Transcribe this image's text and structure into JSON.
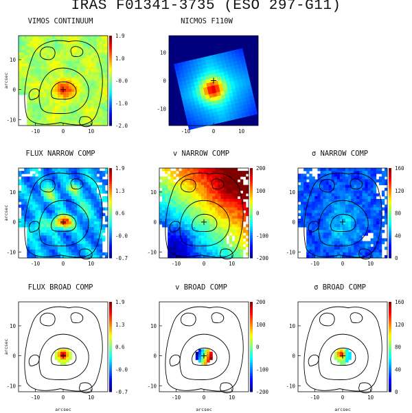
{
  "title": "IRAS F01341-3735 (ESO 297-G11)",
  "colors": {
    "jet": [
      "#00007f",
      "#0000ff",
      "#007fff",
      "#00ffff",
      "#7fff7f",
      "#ffff00",
      "#ff7f00",
      "#ff0000",
      "#7f0000"
    ],
    "outside": "#00007f"
  },
  "chart_data": [
    {
      "id": "vimos_cont",
      "type": "heatmap",
      "title": "VIMOS CONTINUUM",
      "xlabel": "",
      "ylabel": "arcsec",
      "xticks": [
        "-10",
        "0",
        "10"
      ],
      "yticks": [
        "10",
        "0",
        "-10"
      ],
      "colorbar": [
        "1.9",
        "1.0",
        "-0.0",
        "-1.0",
        "-2.0"
      ],
      "xlim": [
        -16,
        16
      ],
      "ylim": [
        -12,
        18
      ]
    },
    {
      "id": "nicmos",
      "type": "heatmap",
      "title": "NICMOS F110W",
      "xlabel": "",
      "ylabel": "",
      "xticks": [
        "-10",
        "0",
        "10"
      ],
      "yticks": [
        "10",
        "0",
        "-10"
      ],
      "xlim": [
        -16,
        16
      ],
      "ylim": [
        -16,
        16
      ]
    },
    {
      "id": "flux_narrow",
      "type": "heatmap",
      "title": "FLUX NARROW COMP",
      "xlabel": "",
      "ylabel": "arcsec",
      "xticks": [
        "-10",
        "0",
        "10"
      ],
      "yticks": [
        "10",
        "0",
        "-10"
      ],
      "colorbar": [
        "1.9",
        "1.3",
        "0.6",
        "-0.0",
        "-0.7"
      ],
      "xlim": [
        -16,
        16
      ],
      "ylim": [
        -12,
        18
      ]
    },
    {
      "id": "v_narrow",
      "type": "heatmap",
      "title": "v NARROW COMP",
      "xlabel": "",
      "ylabel": "",
      "xticks": [
        "-10",
        "0",
        "10"
      ],
      "yticks": [
        "10",
        "0",
        "-10"
      ],
      "colorbar": [
        "200",
        "100",
        "0",
        "-100",
        "-200"
      ],
      "xlim": [
        -16,
        16
      ],
      "ylim": [
        -12,
        18
      ]
    },
    {
      "id": "sigma_narrow",
      "type": "heatmap",
      "title": "σ NARROW COMP",
      "xlabel": "",
      "ylabel": "",
      "xticks": [
        "-10",
        "0",
        "10"
      ],
      "yticks": [
        "10",
        "0",
        "-10"
      ],
      "colorbar": [
        "160",
        "120",
        "80",
        "40",
        "0"
      ],
      "xlim": [
        -16,
        16
      ],
      "ylim": [
        -12,
        18
      ]
    },
    {
      "id": "flux_broad",
      "type": "heatmap",
      "title": "FLUX BROAD COMP",
      "xlabel": "arcsec",
      "ylabel": "arcsec",
      "xticks": [
        "-10",
        "0",
        "10"
      ],
      "yticks": [
        "10",
        "0",
        "-10"
      ],
      "colorbar": [
        "1.9",
        "1.3",
        "0.6",
        "-0.0",
        "-0.7"
      ],
      "xlim": [
        -16,
        16
      ],
      "ylim": [
        -12,
        18
      ]
    },
    {
      "id": "v_broad",
      "type": "heatmap",
      "title": "v BROAD COMP",
      "xlabel": "arcsec",
      "ylabel": "",
      "xticks": [
        "-10",
        "0",
        "10"
      ],
      "yticks": [
        "10",
        "0",
        "-10"
      ],
      "colorbar": [
        "200",
        "100",
        "0",
        "-100",
        "-200"
      ],
      "xlim": [
        -16,
        16
      ],
      "ylim": [
        -12,
        18
      ]
    },
    {
      "id": "sigma_broad",
      "type": "heatmap",
      "title": "σ BROAD COMP",
      "xlabel": "arcsec",
      "ylabel": "",
      "xticks": [
        "-10",
        "0",
        "10"
      ],
      "yticks": [
        "10",
        "0",
        "-10"
      ],
      "colorbar": [
        "160",
        "120",
        "80",
        "40",
        "0"
      ],
      "xlim": [
        -16,
        16
      ],
      "ylim": [
        -12,
        18
      ]
    }
  ]
}
